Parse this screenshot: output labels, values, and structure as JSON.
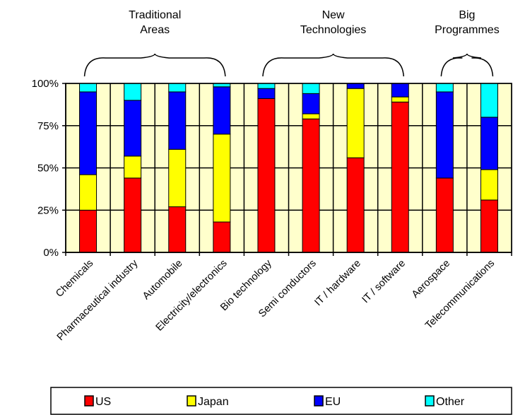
{
  "chart_data": {
    "type": "bar",
    "stacked": true,
    "title": "",
    "xlabel": "",
    "ylabel": "",
    "ylim": [
      0,
      100
    ],
    "y_ticks": [
      "0%",
      "25%",
      "50%",
      "75%",
      "100%"
    ],
    "grid": true,
    "legend_position": "bottom",
    "categories": [
      "Chemicals",
      "Pharmaceutical industry",
      "Automobile",
      "Electricity/electronics",
      "Bio technology",
      "Semi conductors",
      "IT / hardware",
      "IT / software",
      "Aerospace",
      "Telecommunications"
    ],
    "series": [
      {
        "name": "US",
        "color": "#ff0000",
        "values": [
          25,
          44,
          27,
          18,
          91,
          79,
          56,
          89,
          44,
          31
        ]
      },
      {
        "name": "Japan",
        "color": "#ffff00",
        "values": [
          21,
          13,
          34,
          52,
          0,
          3,
          41,
          3,
          0,
          18
        ]
      },
      {
        "name": "EU",
        "color": "#0000ff",
        "values": [
          49,
          33,
          34,
          28,
          6,
          12,
          3,
          8,
          51,
          31
        ]
      },
      {
        "name": "Other",
        "color": "#00ffff",
        "values": [
          5,
          10,
          5,
          2,
          3,
          6,
          0,
          0,
          5,
          20
        ]
      }
    ],
    "groups": [
      {
        "label_lines": [
          "Traditional",
          "Areas"
        ],
        "from": 0,
        "to": 3
      },
      {
        "label_lines": [
          "New",
          "Technologies"
        ],
        "from": 4,
        "to": 7
      },
      {
        "label_lines": [
          "Big",
          "Programmes"
        ],
        "from": 8,
        "to": 9
      }
    ],
    "plot_background": "#ffffcc"
  }
}
